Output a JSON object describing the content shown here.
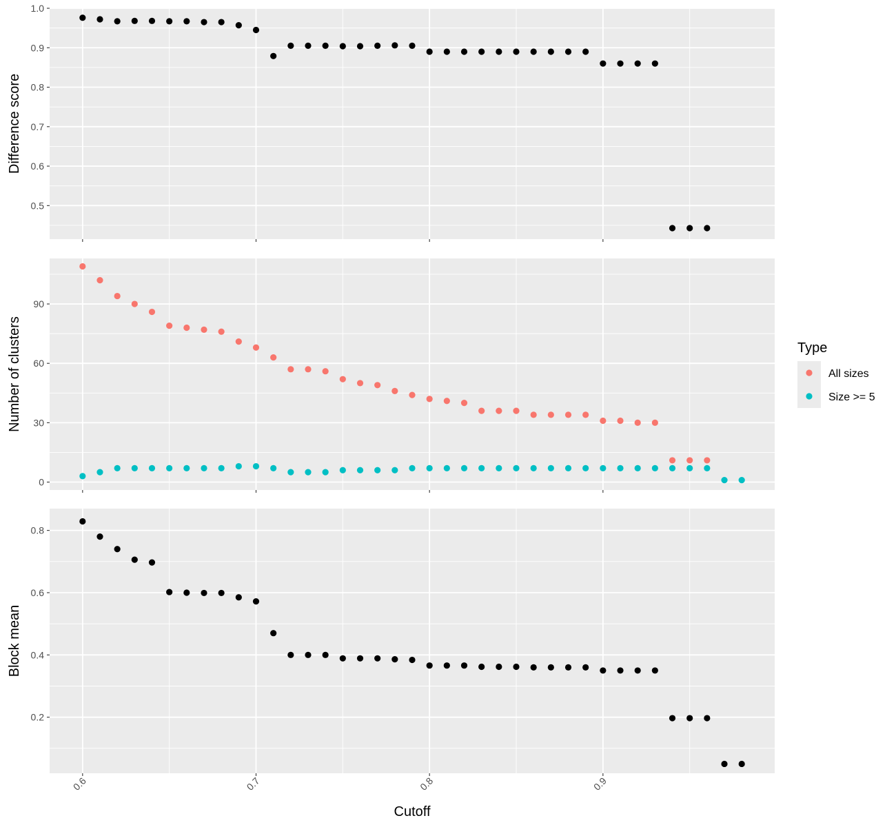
{
  "chart_data": {
    "type": "scatter",
    "xlabel": "Cutoff",
    "x_ticks": [
      "0.6",
      "0.7",
      "0.8",
      "0.9"
    ],
    "xlim": [
      0.581,
      0.999
    ],
    "panels": [
      {
        "ylabel": "Difference score",
        "ylim": [
          0.415,
          1.0
        ],
        "y_ticks": [
          "0.5",
          "0.6",
          "0.7",
          "0.8",
          "0.9",
          "1.0"
        ],
        "series": [
          {
            "color": "#000000",
            "x": [
              0.6,
              0.61,
              0.62,
              0.63,
              0.64,
              0.65,
              0.66,
              0.67,
              0.68,
              0.69,
              0.7,
              0.71,
              0.72,
              0.73,
              0.74,
              0.75,
              0.76,
              0.77,
              0.78,
              0.79,
              0.8,
              0.81,
              0.82,
              0.83,
              0.84,
              0.85,
              0.86,
              0.87,
              0.88,
              0.89,
              0.9,
              0.91,
              0.92,
              0.93,
              0.94,
              0.95,
              0.96
            ],
            "y": [
              0.976,
              0.972,
              0.967,
              0.968,
              0.968,
              0.967,
              0.967,
              0.965,
              0.965,
              0.957,
              0.945,
              0.879,
              0.905,
              0.905,
              0.905,
              0.904,
              0.904,
              0.905,
              0.906,
              0.905,
              0.89,
              0.89,
              0.89,
              0.89,
              0.89,
              0.89,
              0.89,
              0.89,
              0.89,
              0.89,
              0.86,
              0.86,
              0.86,
              0.86,
              0.443,
              0.443,
              0.443
            ]
          }
        ]
      },
      {
        "ylabel": "Number of clusters",
        "ylim": [
          -4,
          113
        ],
        "y_ticks": [
          "0",
          "30",
          "60",
          "90"
        ],
        "legend": {
          "title": "Type",
          "position": "right",
          "entries": [
            {
              "label": "All sizes",
              "color": "#F8766D"
            },
            {
              "label": "Size >= 5",
              "color": "#00BFC4"
            }
          ]
        },
        "series": [
          {
            "name": "All sizes",
            "color": "#F8766D",
            "x": [
              0.6,
              0.61,
              0.62,
              0.63,
              0.64,
              0.65,
              0.66,
              0.67,
              0.68,
              0.69,
              0.7,
              0.71,
              0.72,
              0.73,
              0.74,
              0.75,
              0.76,
              0.77,
              0.78,
              0.79,
              0.8,
              0.81,
              0.82,
              0.83,
              0.84,
              0.85,
              0.86,
              0.87,
              0.88,
              0.89,
              0.9,
              0.91,
              0.92,
              0.93,
              0.94,
              0.95,
              0.96
            ],
            "y": [
              109,
              102,
              94,
              90,
              86,
              79,
              78,
              77,
              76,
              71,
              68,
              63,
              57,
              57,
              56,
              52,
              50,
              49,
              46,
              44,
              42,
              41,
              40,
              36,
              36,
              36,
              34,
              34,
              34,
              34,
              31,
              31,
              30,
              30,
              11,
              11,
              11
            ]
          },
          {
            "name": "Size >= 5",
            "color": "#00BFC4",
            "x": [
              0.6,
              0.61,
              0.62,
              0.63,
              0.64,
              0.65,
              0.66,
              0.67,
              0.68,
              0.69,
              0.7,
              0.71,
              0.72,
              0.73,
              0.74,
              0.75,
              0.76,
              0.77,
              0.78,
              0.79,
              0.8,
              0.81,
              0.82,
              0.83,
              0.84,
              0.85,
              0.86,
              0.87,
              0.88,
              0.89,
              0.9,
              0.91,
              0.92,
              0.93,
              0.94,
              0.95,
              0.96,
              0.97,
              0.98
            ],
            "y": [
              3,
              5,
              7,
              7,
              7,
              7,
              7,
              7,
              7,
              8,
              8,
              7,
              5,
              5,
              5,
              6,
              6,
              6,
              6,
              7,
              7,
              7,
              7,
              7,
              7,
              7,
              7,
              7,
              7,
              7,
              7,
              7,
              7,
              7,
              7,
              7,
              7,
              1,
              1
            ]
          }
        ]
      },
      {
        "ylabel": "Block mean",
        "ylim": [
          0.02,
          0.87
        ],
        "y_ticks": [
          "0.2",
          "0.4",
          "0.6",
          "0.8"
        ],
        "series": [
          {
            "color": "#000000",
            "x": [
              0.6,
              0.61,
              0.62,
              0.63,
              0.64,
              0.65,
              0.66,
              0.67,
              0.68,
              0.69,
              0.7,
              0.71,
              0.72,
              0.73,
              0.74,
              0.75,
              0.76,
              0.77,
              0.78,
              0.79,
              0.8,
              0.81,
              0.82,
              0.83,
              0.84,
              0.85,
              0.86,
              0.87,
              0.88,
              0.89,
              0.9,
              0.91,
              0.92,
              0.93,
              0.94,
              0.95,
              0.96,
              0.97,
              0.98
            ],
            "y": [
              0.829,
              0.78,
              0.74,
              0.706,
              0.697,
              0.602,
              0.6,
              0.599,
              0.599,
              0.585,
              0.572,
              0.47,
              0.4,
              0.4,
              0.4,
              0.389,
              0.389,
              0.389,
              0.386,
              0.384,
              0.366,
              0.366,
              0.366,
              0.362,
              0.362,
              0.362,
              0.36,
              0.36,
              0.36,
              0.36,
              0.35,
              0.35,
              0.35,
              0.35,
              0.197,
              0.197,
              0.197,
              0.05,
              0.05
            ]
          }
        ]
      }
    ]
  }
}
